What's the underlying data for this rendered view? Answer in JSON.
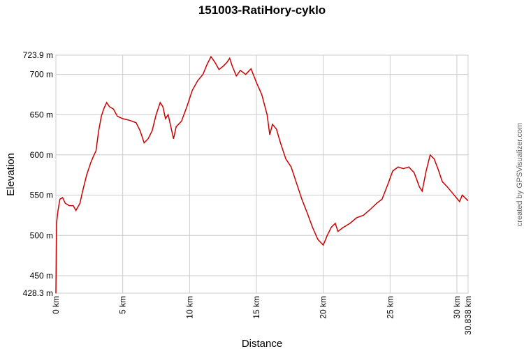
{
  "chart_data": {
    "type": "line",
    "title": "151003-RatiHory-cyklo",
    "x_label": "Distance",
    "y_label": "Elevation",
    "credit": "created by GPSVisualizer.com",
    "grid": true,
    "xlim": [
      0,
      30.838
    ],
    "ylim": [
      428.3,
      723.9
    ],
    "xticks": [
      {
        "value": 0,
        "label": "0 km"
      },
      {
        "value": 5,
        "label": "5 km"
      },
      {
        "value": 10,
        "label": "10 km"
      },
      {
        "value": 15,
        "label": "15 km"
      },
      {
        "value": 20,
        "label": "20 km"
      },
      {
        "value": 25,
        "label": "25 km"
      },
      {
        "value": 30,
        "label": "30 km"
      },
      {
        "value": 30.838,
        "label": "30.838 km"
      }
    ],
    "yticks": [
      {
        "value": 428.3,
        "label": "428.3 m"
      },
      {
        "value": 450,
        "label": "450 m"
      },
      {
        "value": 500,
        "label": "500 m"
      },
      {
        "value": 550,
        "label": "550 m"
      },
      {
        "value": 600,
        "label": "600 m"
      },
      {
        "value": 650,
        "label": "650 m"
      },
      {
        "value": 700,
        "label": "700 m"
      },
      {
        "value": 723.9,
        "label": "723.9 m"
      }
    ],
    "x": [
      0,
      0.05,
      0.15,
      0.3,
      0.5,
      0.7,
      1.0,
      1.3,
      1.5,
      1.8,
      2.0,
      2.3,
      2.6,
      2.8,
      3.0,
      3.2,
      3.4,
      3.6,
      3.8,
      4.0,
      4.3,
      4.6,
      5.0,
      5.5,
      6.0,
      6.3,
      6.6,
      6.9,
      7.2,
      7.5,
      7.8,
      8.0,
      8.2,
      8.4,
      8.8,
      9.0,
      9.4,
      9.8,
      10.2,
      10.6,
      11.0,
      11.3,
      11.6,
      11.9,
      12.2,
      12.5,
      12.8,
      13.0,
      13.2,
      13.5,
      13.8,
      14.2,
      14.6,
      15.0,
      15.4,
      15.8,
      16.0,
      16.2,
      16.5,
      16.8,
      17.2,
      17.6,
      18.0,
      18.4,
      18.8,
      19.2,
      19.6,
      20.0,
      20.3,
      20.6,
      20.9,
      21.1,
      21.5,
      22.0,
      22.5,
      23.0,
      23.5,
      24.0,
      24.4,
      24.8,
      25.2,
      25.6,
      26.0,
      26.4,
      26.8,
      27.2,
      27.4,
      27.7,
      28.0,
      28.3,
      28.6,
      28.9,
      29.3,
      29.7,
      30.0,
      30.2,
      30.4,
      30.838
    ],
    "series": [
      {
        "name": "Elevation",
        "color": "#cc0000",
        "values": [
          428,
          515,
          530,
          545,
          547,
          540,
          537,
          537,
          531,
          540,
          555,
          575,
          590,
          598,
          605,
          630,
          648,
          658,
          665,
          660,
          657,
          648,
          645,
          643,
          640,
          630,
          615,
          620,
          630,
          650,
          665,
          660,
          645,
          650,
          620,
          635,
          642,
          660,
          680,
          692,
          700,
          712,
          722,
          715,
          706,
          710,
          715,
          720,
          710,
          698,
          705,
          700,
          707,
          690,
          675,
          650,
          625,
          638,
          632,
          615,
          595,
          585,
          565,
          545,
          528,
          510,
          495,
          488,
          500,
          510,
          515,
          505,
          510,
          515,
          522,
          525,
          532,
          540,
          545,
          562,
          580,
          585,
          583,
          585,
          578,
          560,
          555,
          580,
          600,
          595,
          582,
          567,
          560,
          552,
          546,
          542,
          550,
          543
        ]
      }
    ]
  }
}
